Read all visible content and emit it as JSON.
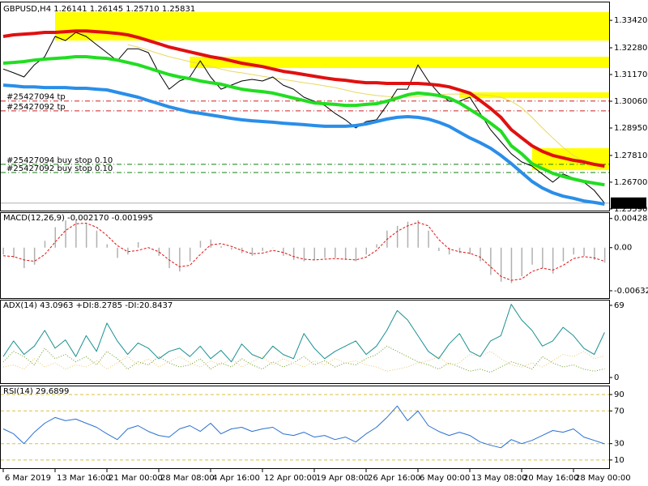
{
  "chart_data": [
    {
      "type": "line",
      "title": "GBPUSD,H4  1.26141 1.26145 1.25710 1.25831",
      "categories": [
        "6 Mar 2019",
        null,
        null,
        null,
        null,
        "13 Mar 16:00",
        null,
        null,
        null,
        null,
        "21 Mar 00:00",
        null,
        null,
        null,
        null,
        "28 Mar 08:00",
        null,
        null,
        null,
        null,
        "4 Apr 16:00",
        null,
        null,
        null,
        null,
        "12 Apr 00:00",
        null,
        null,
        null,
        null,
        "19 Apr 08:00",
        null,
        null,
        null,
        null,
        "26 Apr 16:00",
        null,
        null,
        null,
        null,
        "6 May 00:00",
        null,
        null,
        null,
        null,
        "13 May 08:00",
        null,
        null,
        null,
        null,
        "20 May 16:00",
        null,
        null,
        null,
        null,
        "28 May 00:00",
        null,
        null,
        null
      ],
      "ylim": [
        1.2552,
        1.3413
      ],
      "yticks": [
        {
          "value": 1.3342,
          "label": "1.33420"
        },
        {
          "value": 1.3228,
          "label": "1.32280"
        },
        {
          "value": 1.3117,
          "label": "1.31170"
        },
        {
          "value": 1.3006,
          "label": "1.30060"
        },
        {
          "value": 1.2895,
          "label": "1.28950"
        },
        {
          "value": 1.2781,
          "label": "1.27810"
        },
        {
          "value": 1.267,
          "label": "1.26700"
        },
        {
          "value": 1.2559,
          "label": "1.25590"
        }
      ],
      "zones": [
        {
          "low": 1.3258,
          "high": 1.3376,
          "start": 5,
          "color": "#ffff00"
        },
        {
          "low": 1.3144,
          "high": 1.3191,
          "start": 18,
          "color": "#ffff00"
        },
        {
          "low": 1.3019,
          "high": 1.3043,
          "start": 44,
          "color": "#ffff00"
        },
        {
          "low": 1.272,
          "high": 1.2811,
          "start": 51,
          "color": "#ffff00"
        }
      ],
      "orders": [
        {
          "label": "#25427094 tp",
          "price": 1.3007,
          "color": "#d02020"
        },
        {
          "label": "#25427092 tp",
          "price": 1.2966,
          "color": "#d02020"
        },
        {
          "label": "#25427094 buy stop 0.10",
          "price": 1.2744,
          "color": "#108010"
        },
        {
          "label": "#25427092 buy stop 0.10",
          "price": 1.271,
          "color": "#108010"
        }
      ],
      "last_price": 1.25831,
      "series": [
        {
          "name": "Yellow MA",
          "color": "#e8d860",
          "style": "thin",
          "values": [
            null,
            null,
            null,
            null,
            null,
            null,
            null,
            null,
            null,
            null,
            null,
            null,
            1.3241,
            1.3231,
            1.3218,
            1.3204,
            1.3191,
            1.3181,
            1.3171,
            1.3161,
            1.315,
            1.314,
            1.313,
            1.3124,
            1.3117,
            1.311,
            1.3103,
            1.3097,
            1.309,
            1.3083,
            1.3077,
            1.307,
            1.3063,
            1.3053,
            1.3043,
            1.3036,
            1.303,
            1.3026,
            1.3023,
            1.3023,
            1.3026,
            1.303,
            1.3033,
            1.3036,
            1.3036,
            1.3036,
            1.3033,
            1.303,
            1.3023,
            1.3006,
            1.2979,
            1.2939,
            1.2895,
            1.2854,
            1.2814,
            1.2781,
            1.2757,
            1.274,
            1.273
          ]
        },
        {
          "name": "Price",
          "color": "#000000",
          "style": "thin",
          "values": [
            1.314,
            1.3124,
            1.3107,
            1.3157,
            1.3191,
            1.3275,
            1.3258,
            1.3292,
            1.3275,
            1.3241,
            1.3208,
            1.3174,
            1.3224,
            1.3224,
            1.3208,
            1.3124,
            1.3056,
            1.309,
            1.3107,
            1.3174,
            1.3107,
            1.3056,
            1.3073,
            1.309,
            1.3097,
            1.309,
            1.3107,
            1.3073,
            1.3056,
            1.3023,
            1.3006,
            1.2989,
            1.2956,
            1.2929,
            1.2895,
            1.2922,
            1.2929,
            1.2989,
            1.3056,
            1.3056,
            1.3157,
            1.309,
            1.304,
            1.3006,
            1.3006,
            1.3023,
            1.2956,
            1.2888,
            1.2838,
            1.2788,
            1.2754,
            1.2737,
            1.2704,
            1.267,
            1.2704,
            1.2687,
            1.267,
            1.2636,
            1.2583
          ]
        },
        {
          "name": "Blue MA",
          "color": "#2a8ee8",
          "style": "thick",
          "values": [
            1.3073,
            1.307,
            1.3066,
            1.3066,
            1.3063,
            1.3063,
            1.3063,
            1.306,
            1.306,
            1.3056,
            1.3053,
            1.3043,
            1.3033,
            1.3023,
            1.3009,
            1.2996,
            1.2983,
            1.2972,
            1.2962,
            1.2956,
            1.2949,
            1.2942,
            1.2935,
            1.2929,
            1.2925,
            1.2922,
            1.2919,
            1.2915,
            1.2912,
            1.2909,
            1.2905,
            1.2902,
            1.2902,
            1.2902,
            1.2905,
            1.2912,
            1.2922,
            1.2932,
            1.2939,
            1.2942,
            1.2939,
            1.2932,
            1.2919,
            1.2902,
            1.2878,
            1.2854,
            1.2834,
            1.2811,
            1.2781,
            1.2747,
            1.271,
            1.2673,
            1.2646,
            1.2626,
            1.2612,
            1.2603,
            1.2592,
            1.2586,
            1.2579
          ]
        },
        {
          "name": "Green MA",
          "color": "#22dd22",
          "style": "thick",
          "values": [
            1.3164,
            1.3167,
            1.3171,
            1.3177,
            1.3181,
            1.3184,
            1.3187,
            1.3191,
            1.3191,
            1.3187,
            1.3184,
            1.3177,
            1.3167,
            1.3157,
            1.3144,
            1.313,
            1.3117,
            1.3107,
            1.31,
            1.309,
            1.3083,
            1.3077,
            1.3066,
            1.3056,
            1.305,
            1.3046,
            1.304,
            1.303,
            1.3019,
            1.3009,
            1.2999,
            1.2996,
            1.2993,
            1.2989,
            1.2989,
            1.2993,
            1.2996,
            1.3006,
            1.3019,
            1.3033,
            1.304,
            1.3036,
            1.303,
            1.3019,
            1.2999,
            1.2972,
            1.2946,
            1.2915,
            1.2882,
            1.2821,
            1.2788,
            1.2747,
            1.2727,
            1.2707,
            1.2694,
            1.2683,
            1.2673,
            1.2666,
            1.2659
          ]
        },
        {
          "name": "Red MA",
          "color": "#e01010",
          "style": "thick",
          "values": [
            1.3275,
            1.3282,
            1.3285,
            1.3288,
            1.3292,
            1.3292,
            1.3295,
            1.3298,
            1.3298,
            1.3295,
            1.3292,
            1.3288,
            1.3282,
            1.3271,
            1.3258,
            1.3245,
            1.3231,
            1.3221,
            1.3211,
            1.3201,
            1.3191,
            1.3184,
            1.3174,
            1.3164,
            1.3157,
            1.315,
            1.314,
            1.313,
            1.3124,
            1.3117,
            1.311,
            1.3103,
            1.3097,
            1.3093,
            1.3087,
            1.3083,
            1.3083,
            1.308,
            1.308,
            1.308,
            1.308,
            1.3077,
            1.3073,
            1.3066,
            1.3053,
            1.304,
            1.3009,
            1.2976,
            1.2939,
            1.2888,
            1.2854,
            1.2821,
            1.2798,
            1.2781,
            1.2771,
            1.2761,
            1.2754,
            1.2744,
            1.2737
          ]
        }
      ]
    },
    {
      "type": "line",
      "title": "MACD(12,26,9) -0.002170 -0.001995",
      "ylim": [
        -0.0074,
        0.0052
      ],
      "yticks": [
        0.004281,
        {
          "value": 0,
          "label": "0.00"
        },
        -0.006326
      ],
      "series": [
        {
          "name": "MACD",
          "color": "#b0b0b0",
          "style": "histogram",
          "values": [
            -0.001,
            -0.0015,
            -0.003,
            -0.0025,
            0.001,
            0.003,
            0.004,
            0.0042,
            0.0035,
            0.0025,
            0.0005,
            -0.0015,
            -0.001,
            0.0008,
            0,
            -0.0012,
            -0.003,
            -0.0035,
            -0.002,
            0.001,
            0.0012,
            0.0002,
            -0.0003,
            -0.0008,
            -0.0012,
            -0.0005,
            0,
            -0.0012,
            -0.0018,
            -0.002,
            -0.0018,
            -0.0015,
            -0.0015,
            -0.0018,
            -0.002,
            -0.001,
            0.0005,
            0.0025,
            0.0032,
            0.0038,
            0.004,
            0.0025,
            -0.0005,
            -0.001,
            -0.0008,
            -0.001,
            -0.002,
            -0.004,
            -0.005,
            -0.0052,
            -0.0042,
            -0.0025,
            -0.003,
            -0.0038,
            -0.002,
            -0.001,
            -0.0012,
            -0.0018,
            -0.0022
          ]
        },
        {
          "name": "Signal",
          "color": "#e01010",
          "style": "dashed",
          "values": [
            -0.0012,
            -0.0013,
            -0.0018,
            -0.002,
            -0.001,
            0.0008,
            0.0025,
            0.0035,
            0.0036,
            0.003,
            0.0018,
            0.0003,
            -0.0006,
            -0.0004,
            0,
            -0.0006,
            -0.0018,
            -0.0028,
            -0.0026,
            -0.001,
            0.0004,
            0.0006,
            0.0002,
            -0.0004,
            -0.0009,
            -0.0008,
            -0.0004,
            -0.0007,
            -0.0013,
            -0.0017,
            -0.0018,
            -0.0017,
            -0.0016,
            -0.0017,
            -0.0018,
            -0.0014,
            -0.0004,
            0.0012,
            0.0024,
            0.0032,
            0.0037,
            0.0032,
            0.0012,
            -0.0002,
            -0.0006,
            -0.0008,
            -0.0014,
            -0.0028,
            -0.0042,
            -0.0048,
            -0.0046,
            -0.0035,
            -0.003,
            -0.0033,
            -0.0026,
            -0.0016,
            -0.0013,
            -0.0015,
            -0.002
          ]
        }
      ]
    },
    {
      "type": "line",
      "title": "ADX(14) 43.0963 +DI:8.2785 -DI:20.8437",
      "ylim": [
        -5.4,
        74.4
      ],
      "yticks": [
        69,
        0
      ],
      "series": [
        {
          "name": "+DI",
          "color": "#6a9a20",
          "style": "dotted",
          "values": [
            15,
            25,
            20,
            12,
            28,
            18,
            22,
            15,
            20,
            12,
            25,
            18,
            8,
            15,
            12,
            20,
            14,
            10,
            12,
            18,
            8,
            14,
            10,
            18,
            12,
            8,
            15,
            10,
            14,
            20,
            12,
            16,
            10,
            14,
            12,
            18,
            22,
            30,
            25,
            20,
            15,
            12,
            8,
            14,
            10,
            6,
            8,
            5,
            10,
            15,
            12,
            8,
            20,
            14,
            10,
            12,
            8,
            6,
            8.3
          ]
        },
        {
          "name": "-DI",
          "color": "#e8c870",
          "style": "dotted",
          "values": [
            10,
            12,
            8,
            18,
            10,
            14,
            8,
            12,
            10,
            16,
            8,
            14,
            20,
            12,
            18,
            10,
            15,
            20,
            14,
            10,
            16,
            12,
            18,
            10,
            15,
            20,
            12,
            18,
            14,
            10,
            16,
            12,
            18,
            14,
            16,
            12,
            10,
            6,
            8,
            10,
            14,
            16,
            20,
            12,
            14,
            22,
            20,
            25,
            18,
            12,
            10,
            14,
            10,
            16,
            22,
            20,
            25,
            18,
            20.8
          ]
        },
        {
          "name": "ADX",
          "color": "#1a9090",
          "style": "thin",
          "values": [
            20,
            35,
            22,
            30,
            45,
            28,
            36,
            20,
            40,
            25,
            52,
            35,
            22,
            33,
            28,
            18,
            25,
            28,
            20,
            30,
            18,
            26,
            15,
            32,
            22,
            18,
            30,
            22,
            18,
            42,
            28,
            18,
            25,
            30,
            35,
            22,
            30,
            45,
            64,
            55,
            40,
            25,
            18,
            32,
            42,
            25,
            20,
            35,
            40,
            70,
            55,
            45,
            30,
            35,
            48,
            40,
            28,
            22,
            43.1
          ]
        }
      ]
    },
    {
      "type": "line",
      "title": "RSI(14) 29.6899",
      "ylim": [
        0,
        101
      ],
      "yticks": [
        90,
        70,
        30,
        10
      ],
      "grid": true,
      "series": [
        {
          "name": "RSI",
          "color": "#2a70d0",
          "style": "thin",
          "values": [
            48,
            42,
            30,
            44,
            55,
            62,
            58,
            60,
            55,
            50,
            42,
            35,
            48,
            52,
            45,
            40,
            38,
            48,
            52,
            45,
            55,
            42,
            48,
            50,
            45,
            48,
            50,
            42,
            40,
            44,
            38,
            40,
            35,
            38,
            32,
            42,
            50,
            62,
            76,
            58,
            70,
            52,
            45,
            40,
            44,
            40,
            32,
            28,
            25,
            35,
            30,
            34,
            40,
            46,
            44,
            48,
            38,
            34,
            29.7
          ]
        }
      ]
    }
  ]
}
